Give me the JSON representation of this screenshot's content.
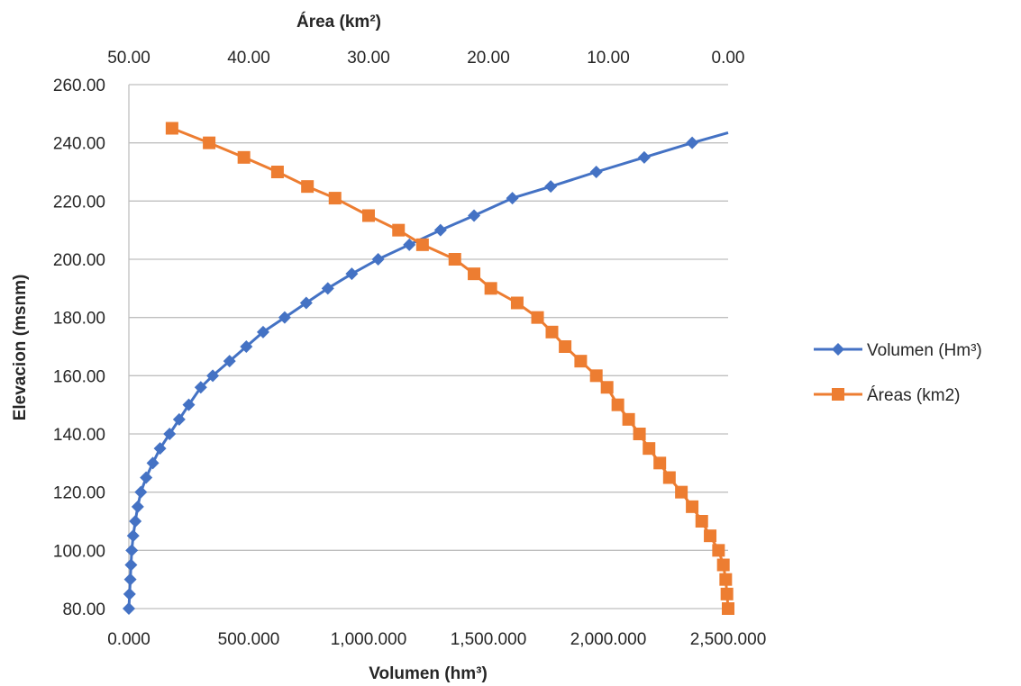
{
  "chart_data": {
    "type": "line",
    "xlabel": "Volumen (hm³)",
    "x2label": "Área (km²)",
    "ylabel": "Elevacion (msnm)",
    "xlim": [
      0,
      2500000
    ],
    "x2lim": [
      50,
      0
    ],
    "ylim": [
      80,
      260
    ],
    "x_ticks": [
      "0.000",
      "500.000",
      "1,000.000",
      "1,500.000",
      "2,000.000",
      "2,500.000"
    ],
    "x2_ticks": [
      "50.00",
      "40.00",
      "30.00",
      "20.00",
      "10.00",
      "0.00"
    ],
    "y_ticks": [
      "80.00",
      "100.00",
      "120.00",
      "140.00",
      "160.00",
      "180.00",
      "200.00",
      "220.00",
      "240.00",
      "260.00"
    ],
    "grid": "horizontal",
    "legend": "right",
    "series": [
      {
        "name": "Volumen (Hm³)",
        "axis": "bottom",
        "color": "#4472C4",
        "marker": "diamond",
        "points": [
          [
            0,
            80
          ],
          [
            3000,
            85
          ],
          [
            6000,
            90
          ],
          [
            9000,
            95
          ],
          [
            12000,
            100
          ],
          [
            18000,
            105
          ],
          [
            27000,
            110
          ],
          [
            37000,
            115
          ],
          [
            50000,
            120
          ],
          [
            72000,
            125
          ],
          [
            100000,
            130
          ],
          [
            130000,
            135
          ],
          [
            170000,
            140
          ],
          [
            210000,
            145
          ],
          [
            250000,
            150
          ],
          [
            300000,
            156
          ],
          [
            350000,
            160
          ],
          [
            420000,
            165
          ],
          [
            490000,
            170
          ],
          [
            560000,
            175
          ],
          [
            650000,
            180
          ],
          [
            740000,
            185
          ],
          [
            830000,
            190
          ],
          [
            930000,
            195
          ],
          [
            1040000,
            200
          ],
          [
            1170000,
            205
          ],
          [
            1300000,
            210
          ],
          [
            1440000,
            215
          ],
          [
            1600000,
            221
          ],
          [
            1760000,
            225
          ],
          [
            1950000,
            230
          ],
          [
            2150000,
            235
          ],
          [
            2350000,
            240
          ],
          [
            2500000,
            243.5
          ]
        ]
      },
      {
        "name": "Áreas (km2)",
        "axis": "top",
        "color": "#ED7D31",
        "marker": "square",
        "points": [
          [
            0,
            80
          ],
          [
            0.1,
            85
          ],
          [
            0.2,
            90
          ],
          [
            0.4,
            95
          ],
          [
            0.8,
            100
          ],
          [
            1.5,
            105
          ],
          [
            2.2,
            110
          ],
          [
            3.0,
            115
          ],
          [
            3.9,
            120
          ],
          [
            4.9,
            125
          ],
          [
            5.7,
            130
          ],
          [
            6.6,
            135
          ],
          [
            7.4,
            140
          ],
          [
            8.3,
            145
          ],
          [
            9.2,
            150
          ],
          [
            10.1,
            156
          ],
          [
            11.0,
            160
          ],
          [
            12.3,
            165
          ],
          [
            13.6,
            170
          ],
          [
            14.7,
            175
          ],
          [
            15.9,
            180
          ],
          [
            17.6,
            185
          ],
          [
            19.8,
            190
          ],
          [
            21.2,
            195
          ],
          [
            22.8,
            200
          ],
          [
            25.5,
            205
          ],
          [
            27.5,
            210
          ],
          [
            30.0,
            215
          ],
          [
            32.8,
            221
          ],
          [
            35.1,
            225
          ],
          [
            37.6,
            230
          ],
          [
            40.4,
            235
          ],
          [
            43.3,
            240
          ],
          [
            46.4,
            245
          ]
        ]
      }
    ]
  }
}
